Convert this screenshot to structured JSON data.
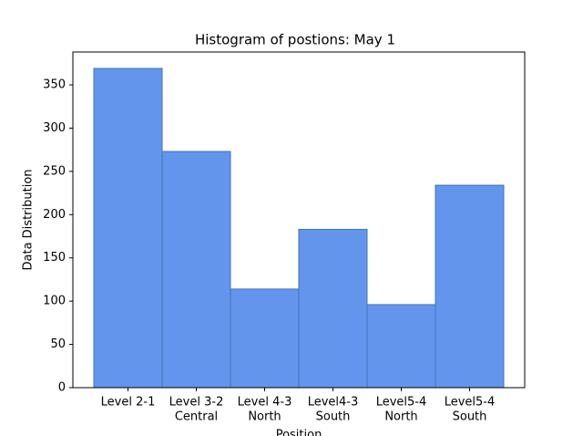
{
  "chart_data": {
    "type": "bar",
    "title": "Histogram of postions: May 1",
    "x_label": "Position",
    "y_label": "Data Distribution",
    "categories": [
      [
        "Level 2-1"
      ],
      [
        "Level 3-2",
        "Central"
      ],
      [
        "Level 4-3",
        "North"
      ],
      [
        "Level4-3",
        "South"
      ],
      [
        "Level5-4",
        "North"
      ],
      [
        "Level5-4",
        "South"
      ]
    ],
    "values": [
      369,
      273,
      114,
      183,
      96,
      234
    ],
    "color": "#6495ed",
    "edge_color": "#3f75b8",
    "ylim": [
      0,
      388
    ],
    "yticks": [
      0,
      50,
      100,
      150,
      200,
      250,
      300,
      350
    ],
    "grid": false
  }
}
